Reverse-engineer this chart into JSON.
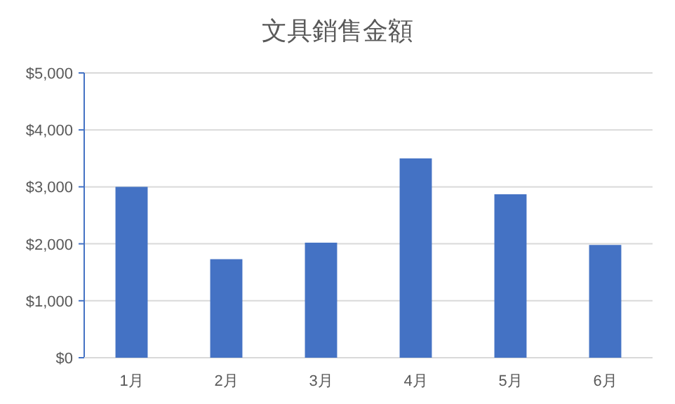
{
  "chart_data": {
    "type": "bar",
    "title": "文具銷售金額",
    "categories": [
      "1月",
      "2月",
      "3月",
      "4月",
      "5月",
      "6月"
    ],
    "values": [
      3000,
      1730,
      2020,
      3500,
      2870,
      1980
    ],
    "color": "#4472c4",
    "ylim": [
      0,
      5000
    ],
    "yticks": [
      {
        "value": 0,
        "label": "$0"
      },
      {
        "value": 1000,
        "label": "$1,000"
      },
      {
        "value": 2000,
        "label": "$2,000"
      },
      {
        "value": 3000,
        "label": "$3,000"
      },
      {
        "value": 4000,
        "label": "$4,000"
      },
      {
        "value": 5000,
        "label": "$5,000"
      }
    ],
    "grid": "y"
  }
}
